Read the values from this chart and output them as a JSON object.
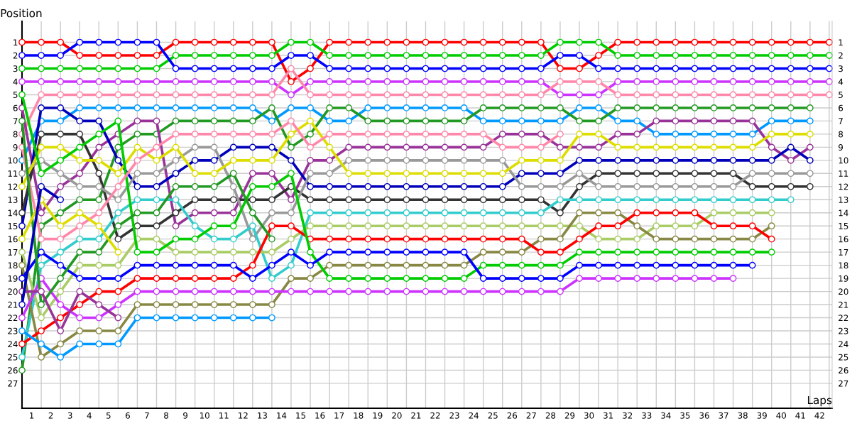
{
  "chart_data": {
    "type": "line",
    "xlabel": "Laps",
    "ylabel": "Position",
    "marker": "circle",
    "line_style": "solid",
    "grid": true,
    "legend": false,
    "x": [
      0,
      1,
      2,
      3,
      4,
      5,
      6,
      7,
      8,
      9,
      10,
      11,
      12,
      13,
      14,
      15,
      16,
      17,
      18,
      19,
      20,
      21,
      22,
      23,
      24,
      25,
      26,
      27,
      28,
      29,
      30,
      31,
      32,
      33,
      34,
      35,
      36,
      37,
      38,
      39,
      40,
      41,
      42
    ],
    "xlim": [
      0,
      42.15
    ],
    "ylim": [
      28.9,
      -0.6
    ],
    "y2lim": [
      28.9,
      -0.6
    ],
    "xticks": [
      {
        "value": 0.5,
        "label": "1"
      },
      {
        "value": 1.5,
        "label": "2"
      },
      {
        "value": 2.5,
        "label": "3"
      },
      {
        "value": 3.5,
        "label": "4"
      },
      {
        "value": 4.5,
        "label": "5"
      },
      {
        "value": 5.5,
        "label": "6"
      },
      {
        "value": 6.5,
        "label": "7"
      },
      {
        "value": 7.5,
        "label": "8"
      },
      {
        "value": 8.5,
        "label": "9"
      },
      {
        "value": 9.5,
        "label": "10"
      },
      {
        "value": 10.5,
        "label": "11"
      },
      {
        "value": 11.5,
        "label": "12"
      },
      {
        "value": 12.5,
        "label": "13"
      },
      {
        "value": 13.5,
        "label": "14"
      },
      {
        "value": 14.5,
        "label": "15"
      },
      {
        "value": 15.5,
        "label": "16"
      },
      {
        "value": 16.5,
        "label": "17"
      },
      {
        "value": 17.5,
        "label": "18"
      },
      {
        "value": 18.5,
        "label": "19"
      },
      {
        "value": 19.5,
        "label": "20"
      },
      {
        "value": 20.5,
        "label": "21"
      },
      {
        "value": 21.5,
        "label": "22"
      },
      {
        "value": 22.5,
        "label": "23"
      },
      {
        "value": 23.5,
        "label": "24"
      },
      {
        "value": 24.5,
        "label": "25"
      },
      {
        "value": 25.5,
        "label": "26"
      },
      {
        "value": 26.5,
        "label": "27"
      },
      {
        "value": 27.5,
        "label": "28"
      },
      {
        "value": 28.5,
        "label": "29"
      },
      {
        "value": 29.5,
        "label": "30"
      },
      {
        "value": 30.5,
        "label": "31"
      },
      {
        "value": 31.5,
        "label": "32"
      },
      {
        "value": 32.5,
        "label": "33"
      },
      {
        "value": 33.5,
        "label": "34"
      },
      {
        "value": 34.5,
        "label": "35"
      },
      {
        "value": 35.5,
        "label": "36"
      },
      {
        "value": 36.5,
        "label": "37"
      },
      {
        "value": 37.5,
        "label": "38"
      },
      {
        "value": 38.5,
        "label": "39"
      },
      {
        "value": 39.5,
        "label": "40"
      },
      {
        "value": 40.5,
        "label": "41"
      },
      {
        "value": 41.5,
        "label": "42"
      },
      {
        "value": 1,
        "label": null
      },
      {
        "value": 2,
        "label": null
      },
      {
        "value": 3,
        "label": null
      },
      {
        "value": 4,
        "label": null
      },
      {
        "value": 5,
        "label": null
      },
      {
        "value": 6,
        "label": null
      },
      {
        "value": 7,
        "label": null
      },
      {
        "value": 8,
        "label": null
      },
      {
        "value": 9,
        "label": null
      },
      {
        "value": 10,
        "label": null
      },
      {
        "value": 11,
        "label": null
      },
      {
        "value": 12,
        "label": null
      },
      {
        "value": 13,
        "label": null
      },
      {
        "value": 14,
        "label": null
      },
      {
        "value": 15,
        "label": null
      },
      {
        "value": 16,
        "label": null
      },
      {
        "value": 17,
        "label": null
      },
      {
        "value": 18,
        "label": null
      },
      {
        "value": 19,
        "label": null
      },
      {
        "value": 20,
        "label": null
      },
      {
        "value": 21,
        "label": null
      },
      {
        "value": 22,
        "label": null
      },
      {
        "value": 23,
        "label": null
      },
      {
        "value": 24,
        "label": null
      },
      {
        "value": 25,
        "label": null
      },
      {
        "value": 26,
        "label": null
      },
      {
        "value": 27,
        "label": null
      },
      {
        "value": 28,
        "label": null
      },
      {
        "value": 29,
        "label": null
      },
      {
        "value": 30,
        "label": null
      },
      {
        "value": 31,
        "label": null
      },
      {
        "value": 32,
        "label": null
      },
      {
        "value": 33,
        "label": null
      },
      {
        "value": 34,
        "label": null
      },
      {
        "value": 35,
        "label": null
      },
      {
        "value": 36,
        "label": null
      },
      {
        "value": 37,
        "label": null
      },
      {
        "value": 38,
        "label": null
      },
      {
        "value": 39,
        "label": null
      },
      {
        "value": 40,
        "label": null
      },
      {
        "value": 41,
        "label": null
      },
      {
        "value": 42,
        "label": null
      }
    ],
    "yticks": [
      1,
      2,
      3,
      4,
      5,
      6,
      7,
      8,
      9,
      10,
      11,
      12,
      13,
      14,
      15,
      16,
      17,
      18,
      19,
      20,
      21,
      22,
      23,
      24,
      25,
      26,
      27
    ],
    "y2ticks": [
      1,
      2,
      3,
      4,
      5,
      6,
      7,
      8,
      9,
      10,
      11,
      12,
      13,
      14,
      15,
      16,
      17,
      18,
      19,
      20,
      21,
      22,
      23,
      24,
      25,
      26,
      27
    ],
    "series": [
      {
        "color": "#ff0000",
        "values": [
          1,
          1,
          1,
          2,
          2,
          2,
          2,
          2,
          1,
          1,
          1,
          1,
          1,
          1,
          4,
          3,
          1,
          1,
          1,
          1,
          1,
          1,
          1,
          1,
          1,
          1,
          1,
          1,
          3,
          3,
          2,
          1,
          1,
          1,
          1,
          1,
          1,
          1,
          1,
          1,
          1,
          1,
          1
        ]
      },
      {
        "color": "#00cc00",
        "values": [
          3,
          3,
          3,
          3,
          3,
          3,
          3,
          3,
          2,
          2,
          2,
          2,
          2,
          2,
          1,
          1,
          2,
          2,
          2,
          2,
          2,
          2,
          2,
          2,
          2,
          2,
          2,
          2,
          1,
          1,
          1,
          2,
          2,
          2,
          2,
          2,
          2,
          2,
          2,
          2,
          2,
          2,
          2
        ]
      },
      {
        "color": "#0000ff",
        "values": [
          2,
          2,
          2,
          1,
          1,
          1,
          1,
          1,
          3,
          3,
          3,
          3,
          3,
          3,
          2,
          2,
          3,
          3,
          3,
          3,
          3,
          3,
          3,
          3,
          3,
          3,
          3,
          3,
          2,
          2,
          3,
          3,
          3,
          3,
          3,
          3,
          3,
          3,
          3,
          3,
          3,
          3,
          3
        ]
      },
      {
        "color": "#cc33ff",
        "values": [
          4,
          4,
          4,
          4,
          4,
          4,
          4,
          4,
          4,
          4,
          4,
          4,
          4,
          4,
          5,
          4,
          4,
          4,
          4,
          4,
          4,
          4,
          4,
          4,
          4,
          4,
          4,
          4,
          5,
          5,
          5,
          4,
          4,
          4,
          4,
          4,
          4,
          4,
          4,
          4,
          4,
          4,
          4
        ]
      },
      {
        "color": "#ff88aa",
        "values": [
          8,
          5,
          5,
          5,
          5,
          5,
          5,
          5,
          5,
          5,
          5,
          5,
          5,
          5,
          3,
          5,
          5,
          5,
          5,
          5,
          5,
          5,
          5,
          5,
          5,
          5,
          5,
          5,
          4,
          4,
          4,
          5,
          5,
          5,
          5,
          5,
          5,
          5,
          5,
          5,
          5,
          5,
          5
        ]
      },
      {
        "color": "#0099ff",
        "values": [
          10,
          7,
          7,
          6,
          6,
          6,
          6,
          6,
          6,
          6,
          6,
          6,
          6,
          7,
          6,
          6,
          7,
          7,
          6,
          6,
          6,
          6,
          6,
          6,
          7,
          7,
          7,
          7,
          7,
          6,
          6,
          7,
          7,
          8,
          8,
          8,
          8,
          8,
          8,
          7,
          7,
          7,
          null
        ]
      },
      {
        "color": "#229922",
        "values": [
          26,
          15,
          14,
          13,
          13,
          9,
          8,
          8,
          7,
          7,
          7,
          7,
          7,
          6,
          9,
          8,
          6,
          6,
          7,
          7,
          7,
          7,
          7,
          7,
          6,
          6,
          6,
          6,
          6,
          7,
          7,
          6,
          6,
          6,
          6,
          6,
          6,
          6,
          6,
          6,
          6,
          6,
          null
        ]
      },
      {
        "color": "#993399",
        "values": [
          6,
          14,
          12,
          11,
          9,
          8,
          7,
          7,
          15,
          14,
          14,
          14,
          11,
          11,
          13,
          10,
          10,
          9,
          9,
          9,
          9,
          9,
          9,
          9,
          9,
          8,
          8,
          8,
          9,
          9,
          9,
          8,
          8,
          7,
          7,
          7,
          7,
          7,
          7,
          9,
          10,
          9,
          null
        ]
      },
      {
        "color": "#0000bb",
        "values": [
          15,
          6,
          6,
          7,
          7,
          10,
          12,
          12,
          11,
          10,
          10,
          9,
          9,
          9,
          10,
          12,
          12,
          12,
          12,
          12,
          12,
          12,
          12,
          12,
          12,
          12,
          11,
          11,
          11,
          10,
          10,
          10,
          10,
          10,
          10,
          10,
          10,
          10,
          10,
          10,
          9,
          10,
          null
        ]
      },
      {
        "color": "#333333",
        "values": [
          14,
          8,
          8,
          8,
          11,
          16,
          15,
          15,
          14,
          13,
          13,
          13,
          13,
          13,
          12,
          13,
          13,
          13,
          13,
          13,
          13,
          13,
          13,
          13,
          13,
          13,
          13,
          13,
          14,
          12,
          11,
          11,
          11,
          11,
          11,
          11,
          11,
          11,
          12,
          12,
          12,
          12,
          null
        ]
      },
      {
        "color": "#999999",
        "values": [
          11,
          10,
          11,
          12,
          12,
          13,
          11,
          11,
          10,
          9,
          9,
          12,
          16,
          14,
          14,
          11,
          11,
          10,
          10,
          10,
          10,
          10,
          10,
          10,
          10,
          10,
          12,
          12,
          12,
          11,
          12,
          12,
          12,
          12,
          12,
          12,
          12,
          12,
          11,
          11,
          11,
          11,
          null
        ]
      },
      {
        "color": "#dddd00",
        "values": [
          12,
          9,
          9,
          10,
          10,
          11,
          9,
          10,
          9,
          11,
          11,
          10,
          10,
          10,
          8,
          7,
          9,
          11,
          11,
          11,
          11,
          11,
          11,
          11,
          11,
          11,
          10,
          10,
          10,
          8,
          8,
          9,
          9,
          9,
          9,
          9,
          9,
          9,
          9,
          8,
          8,
          8,
          null
        ]
      },
      {
        "color": "#33cccc",
        "values": [
          25,
          18,
          17,
          16,
          16,
          14,
          13,
          13,
          13,
          15,
          16,
          16,
          15,
          19,
          18,
          14,
          14,
          14,
          14,
          14,
          14,
          14,
          14,
          14,
          14,
          14,
          14,
          14,
          13,
          13,
          13,
          13,
          13,
          13,
          13,
          13,
          13,
          13,
          13,
          13,
          13,
          null,
          null
        ]
      },
      {
        "color": "#aacc66",
        "values": [
          17,
          22,
          20,
          18,
          18,
          18,
          16,
          16,
          17,
          17,
          17,
          17,
          17,
          17,
          16,
          15,
          15,
          15,
          15,
          15,
          15,
          15,
          15,
          15,
          15,
          15,
          15,
          15,
          15,
          15,
          16,
          16,
          16,
          15,
          15,
          15,
          14,
          14,
          14,
          14,
          null,
          null,
          null
        ]
      },
      {
        "color": "#888844",
        "values": [
          18,
          25,
          24,
          23,
          23,
          23,
          21,
          21,
          21,
          21,
          21,
          21,
          21,
          21,
          19,
          19,
          18,
          18,
          18,
          18,
          18,
          18,
          18,
          18,
          17,
          17,
          17,
          16,
          16,
          14,
          14,
          14,
          15,
          16,
          16,
          16,
          16,
          16,
          16,
          15,
          null,
          null,
          null
        ]
      },
      {
        "color": "#ff0000",
        "values": [
          24,
          23,
          22,
          21,
          20,
          20,
          19,
          19,
          19,
          19,
          19,
          19,
          18,
          15,
          15,
          16,
          16,
          16,
          16,
          16,
          16,
          16,
          16,
          16,
          16,
          16,
          16,
          17,
          17,
          16,
          15,
          15,
          14,
          14,
          14,
          14,
          15,
          15,
          15,
          16,
          null,
          null,
          null
        ]
      },
      {
        "color": "#00cc00",
        "values": [
          5,
          11,
          10,
          9,
          8,
          7,
          17,
          17,
          16,
          16,
          15,
          15,
          12,
          12,
          11,
          17,
          19,
          19,
          19,
          19,
          19,
          19,
          19,
          19,
          18,
          18,
          18,
          18,
          18,
          17,
          17,
          17,
          17,
          17,
          17,
          17,
          17,
          17,
          17,
          17,
          null,
          null,
          null
        ]
      },
      {
        "color": "#0000ff",
        "values": [
          19,
          17,
          18,
          19,
          19,
          19,
          18,
          18,
          18,
          18,
          18,
          18,
          19,
          18,
          17,
          18,
          17,
          17,
          17,
          17,
          17,
          17,
          17,
          17,
          19,
          19,
          19,
          19,
          19,
          18,
          18,
          18,
          18,
          18,
          18,
          18,
          18,
          18,
          18,
          null,
          null,
          null,
          null
        ]
      },
      {
        "color": "#cc33ff",
        "values": [
          22,
          19,
          21,
          22,
          22,
          21,
          20,
          20,
          20,
          20,
          20,
          20,
          20,
          20,
          20,
          20,
          20,
          20,
          20,
          20,
          20,
          20,
          20,
          20,
          20,
          20,
          20,
          20,
          20,
          19,
          19,
          19,
          19,
          19,
          19,
          19,
          19,
          19,
          null,
          null,
          null,
          null,
          null
        ]
      },
      {
        "color": "#ff88aa",
        "values": [
          9,
          16,
          16,
          15,
          14,
          12,
          10,
          9,
          8,
          8,
          8,
          8,
          8,
          8,
          7,
          9,
          8,
          8,
          8,
          8,
          8,
          8,
          8,
          8,
          8,
          9,
          9,
          9,
          8,
          null,
          null,
          null,
          null,
          null,
          null,
          null,
          null,
          null,
          null,
          null,
          null,
          null,
          null
        ]
      },
      {
        "color": "#229922",
        "values": [
          7,
          21,
          19,
          17,
          17,
          15,
          14,
          14,
          12,
          12,
          12,
          11,
          14,
          16,
          null,
          null,
          null,
          null,
          null,
          null,
          null,
          null,
          null,
          null,
          null,
          null,
          null,
          null,
          null,
          null,
          null,
          null,
          null,
          null,
          null,
          null,
          null,
          null,
          null,
          null,
          null,
          null,
          null
        ]
      },
      {
        "color": "#0099ff",
        "values": [
          23,
          24,
          25,
          24,
          24,
          24,
          22,
          22,
          22,
          22,
          22,
          22,
          22,
          22,
          null,
          null,
          null,
          null,
          null,
          null,
          null,
          null,
          null,
          null,
          null,
          null,
          null,
          null,
          null,
          null,
          null,
          null,
          null,
          null,
          null,
          null,
          null,
          null,
          null,
          null,
          null,
          null,
          null
        ]
      },
      {
        "color": "#dddd00",
        "values": [
          16,
          13,
          15,
          14,
          15,
          17,
          null,
          null,
          null,
          null,
          null,
          null,
          null,
          null,
          null,
          null,
          null,
          null,
          null,
          null,
          null,
          null,
          null,
          null,
          null,
          null,
          null,
          null,
          null,
          null,
          null,
          null,
          null,
          null,
          null,
          null,
          null,
          null,
          null,
          null,
          null,
          null,
          null
        ]
      },
      {
        "color": "#993399",
        "values": [
          20,
          20,
          23,
          20,
          21,
          22,
          null,
          null,
          null,
          null,
          null,
          null,
          null,
          null,
          null,
          null,
          null,
          null,
          null,
          null,
          null,
          null,
          null,
          null,
          null,
          null,
          null,
          null,
          null,
          null,
          null,
          null,
          null,
          null,
          null,
          null,
          null,
          null,
          null,
          null,
          null,
          null,
          null
        ]
      },
      {
        "color": "#0000bb",
        "values": [
          21,
          12,
          13,
          null,
          null,
          null,
          null,
          null,
          null,
          null,
          null,
          null,
          null,
          null,
          null,
          null,
          null,
          null,
          null,
          null,
          null,
          null,
          null,
          null,
          null,
          null,
          null,
          null,
          null,
          null,
          null,
          null,
          null,
          null,
          null,
          null,
          null,
          null,
          null,
          null,
          null,
          null,
          null
        ]
      }
    ]
  }
}
